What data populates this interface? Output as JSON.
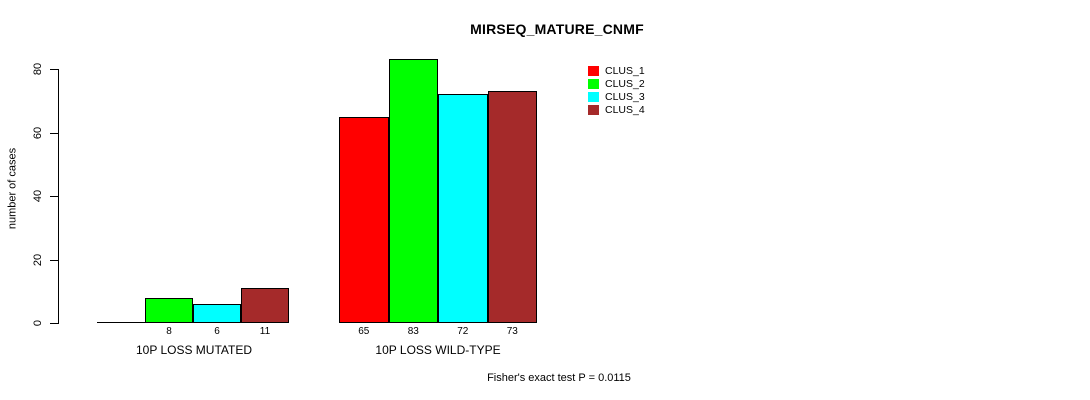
{
  "chart_data": {
    "type": "bar",
    "title": "MIRSEQ_MATURE_CNMF",
    "xlabel": "",
    "ylabel": "number of cases",
    "ylim": [
      0,
      80
    ],
    "yticks": [
      0,
      20,
      40,
      60,
      80
    ],
    "grid": false,
    "legend_position": "top-right",
    "categories": [
      "10P LOSS MUTATED",
      "10P LOSS WILD-TYPE"
    ],
    "series": [
      {
        "name": "CLUS_1",
        "color": "#ff0000",
        "values": [
          0,
          65
        ]
      },
      {
        "name": "CLUS_2",
        "color": "#00ff00",
        "values": [
          8,
          83
        ]
      },
      {
        "name": "CLUS_3",
        "color": "#00ffff",
        "values": [
          6,
          72
        ]
      },
      {
        "name": "CLUS_4",
        "color": "#a52a2a",
        "values": [
          11,
          73
        ]
      }
    ],
    "bar_value_labels_shown": true,
    "zero_bars_unlabeled": true,
    "annotation": "Fisher's exact test P = 0.0115",
    "colors": {
      "axis": "#000000",
      "text": "#000000",
      "background": "#ffffff",
      "bar_border": "#000000"
    }
  }
}
